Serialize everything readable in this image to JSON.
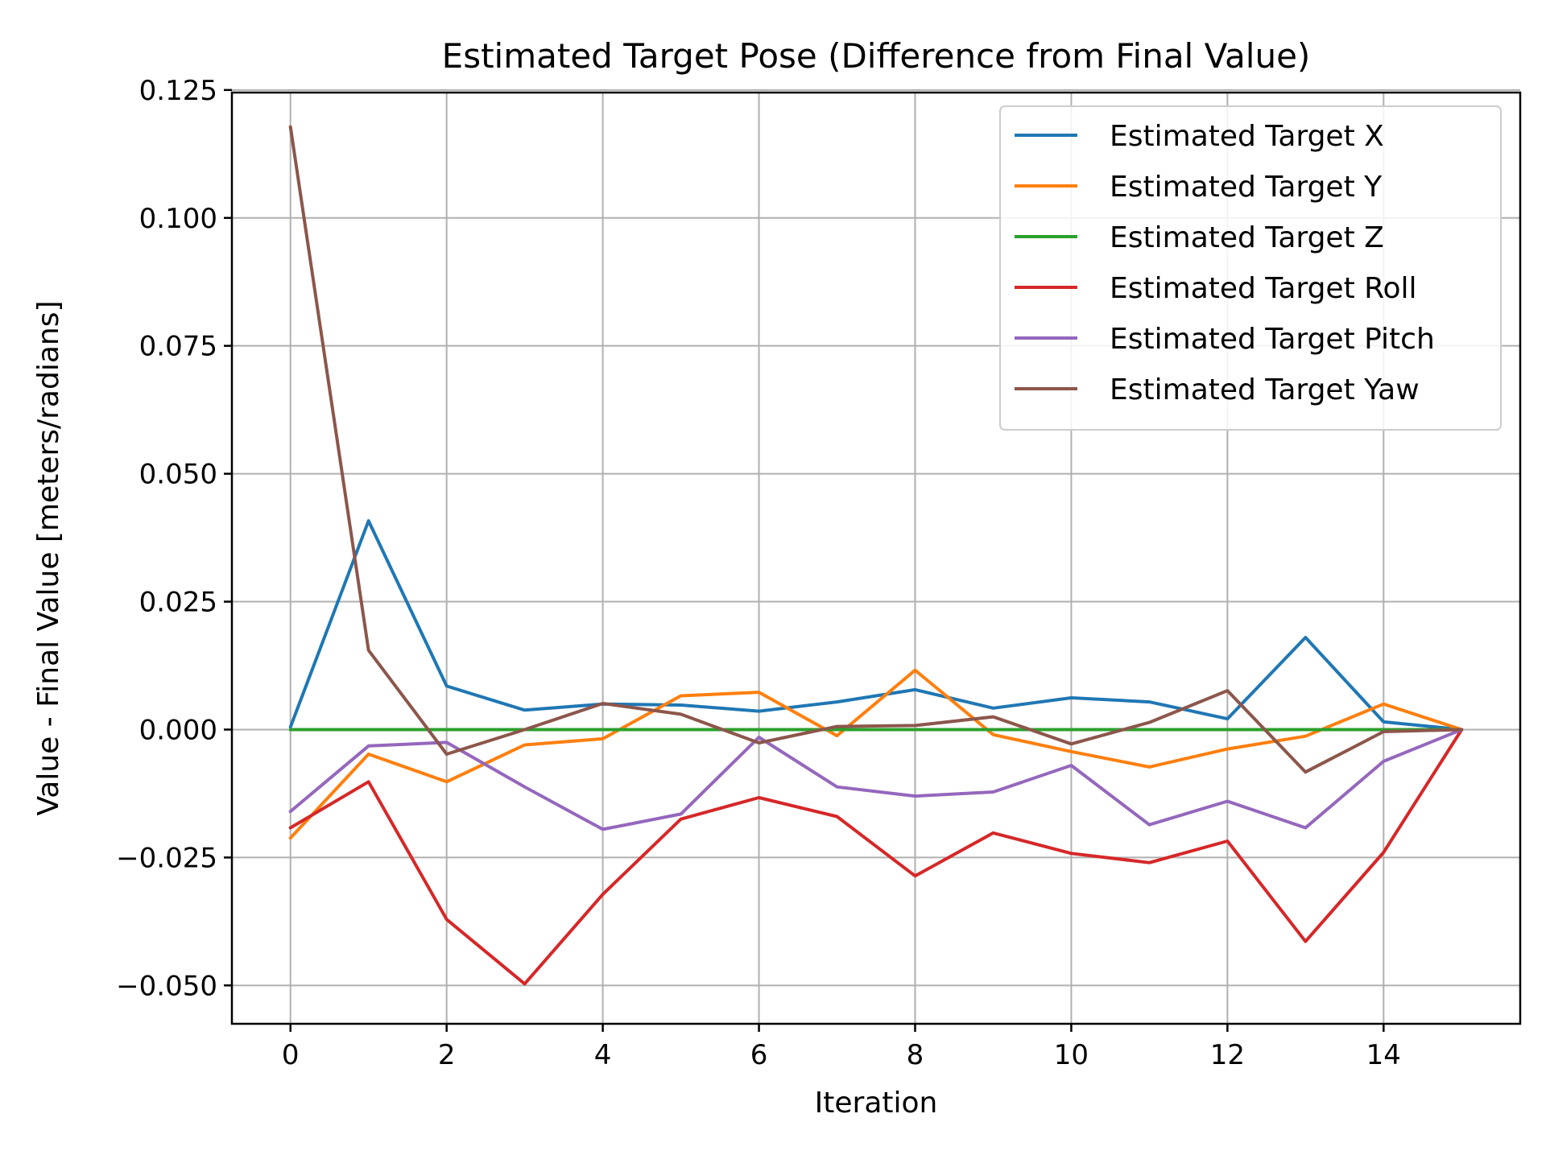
{
  "chart_data": {
    "type": "line",
    "title": "Estimated Target Pose (Difference from Final Value)",
    "xlabel": "Iteration",
    "ylabel": "Value - Final Value [meters/radians]",
    "xlim": [
      -0.75,
      15.75
    ],
    "ylim": [
      -0.0575,
      0.1245
    ],
    "xticks": [
      0,
      2,
      4,
      6,
      8,
      10,
      12,
      14
    ],
    "xtick_labels": [
      "0",
      "2",
      "4",
      "6",
      "8",
      "10",
      "12",
      "14"
    ],
    "yticks": [
      -0.05,
      -0.025,
      0.0,
      0.025,
      0.05,
      0.075,
      0.1,
      0.125
    ],
    "ytick_labels": [
      "−0.050",
      "−0.025",
      "0.000",
      "0.025",
      "0.050",
      "0.075",
      "0.100",
      "0.125"
    ],
    "grid": true,
    "legend_position": "top-right",
    "x": [
      0,
      1,
      2,
      3,
      4,
      5,
      6,
      7,
      8,
      9,
      10,
      11,
      12,
      13,
      14,
      15
    ],
    "series": [
      {
        "name": "Estimated Target X",
        "color": "#1f77b4",
        "values": [
          0.0005,
          0.0408,
          0.0085,
          0.0038,
          0.005,
          0.0048,
          0.0036,
          0.0054,
          0.0078,
          0.0042,
          0.0062,
          0.0054,
          0.0021,
          0.018,
          0.0015,
          0.0
        ]
      },
      {
        "name": "Estimated Target Y",
        "color": "#ff7f0e",
        "values": [
          -0.0212,
          -0.0048,
          -0.0102,
          -0.003,
          -0.0018,
          0.0066,
          0.0073,
          -0.0012,
          0.0116,
          -0.001,
          -0.0043,
          -0.0073,
          -0.0038,
          -0.0013,
          0.005,
          0.0
        ]
      },
      {
        "name": "Estimated Target Z",
        "color": "#2ca02c",
        "values": [
          0.0,
          0.0,
          0.0,
          0.0,
          0.0,
          0.0,
          0.0,
          0.0,
          0.0,
          0.0,
          0.0,
          0.0,
          0.0,
          0.0,
          0.0,
          0.0
        ]
      },
      {
        "name": "Estimated Target Roll",
        "color": "#d62728",
        "values": [
          -0.0192,
          -0.0102,
          -0.0371,
          -0.0497,
          -0.0322,
          -0.0175,
          -0.0133,
          -0.017,
          -0.0286,
          -0.0202,
          -0.0242,
          -0.026,
          -0.0218,
          -0.0414,
          -0.024,
          0.0
        ]
      },
      {
        "name": "Estimated Target Pitch",
        "color": "#9467bd",
        "values": [
          -0.016,
          -0.0032,
          -0.0025,
          -0.0112,
          -0.0195,
          -0.0165,
          -0.0015,
          -0.0112,
          -0.013,
          -0.0122,
          -0.007,
          -0.0186,
          -0.014,
          -0.0192,
          -0.0062,
          0.0
        ]
      },
      {
        "name": "Estimated Target Yaw",
        "color": "#8c564b",
        "values": [
          0.1178,
          0.0155,
          -0.0048,
          0.0,
          0.0051,
          0.003,
          -0.0026,
          0.0006,
          0.0008,
          0.0025,
          -0.0028,
          0.0014,
          0.0076,
          -0.0083,
          -0.0004,
          0.0
        ]
      }
    ]
  }
}
